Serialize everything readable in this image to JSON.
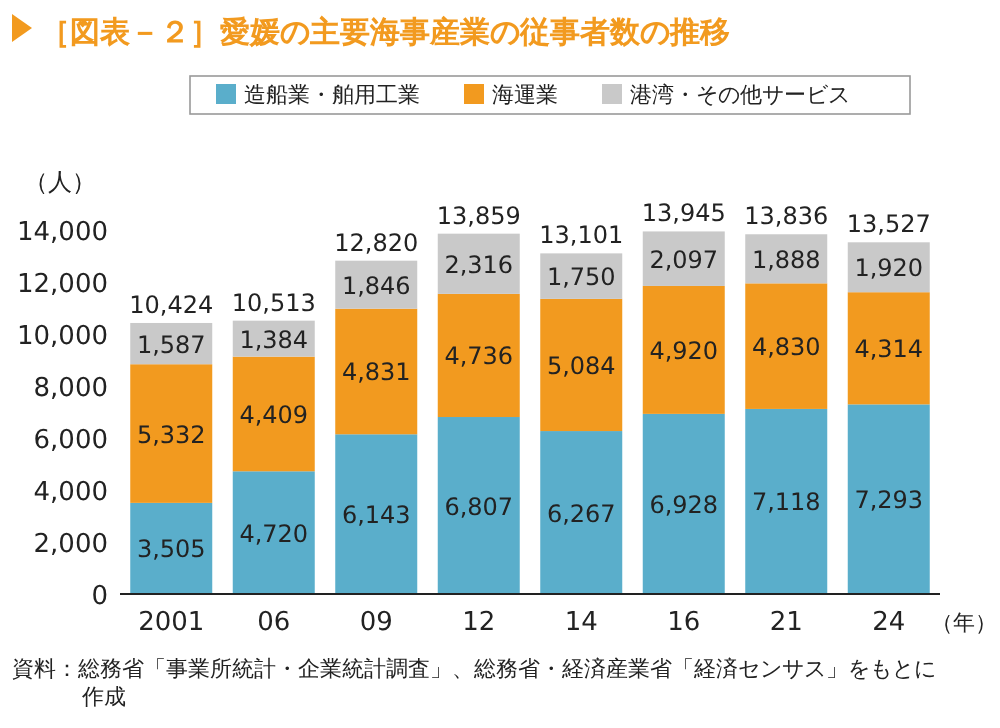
{
  "chart_data": {
    "type": "bar",
    "stacked": true,
    "title": "［図表－２］愛媛の主要海事産業の従事者数の推移",
    "ylabel": "（人）",
    "xlabel": "（年）",
    "categories": [
      "2001",
      "06",
      "09",
      "12",
      "14",
      "16",
      "21",
      "24"
    ],
    "series": [
      {
        "name": "造船業・舶用工業",
        "color": "#5aaecb",
        "values": [
          3505,
          4720,
          6143,
          6807,
          6267,
          6928,
          7118,
          7293
        ],
        "value_labels": [
          "3,505",
          "4,720",
          "6,143",
          "6,807",
          "6,267",
          "6,928",
          "7,118",
          "7,293"
        ]
      },
      {
        "name": "海運業",
        "color": "#f29a1f",
        "values": [
          5332,
          4409,
          4831,
          4736,
          5084,
          4920,
          4830,
          4314
        ],
        "value_labels": [
          "5,332",
          "4,409",
          "4,831",
          "4,736",
          "5,084",
          "4,920",
          "4,830",
          "4,314"
        ]
      },
      {
        "name": "港湾・その他サービス",
        "color": "#c9c9c9",
        "values": [
          1587,
          1384,
          1846,
          2316,
          1750,
          2097,
          1888,
          1920
        ],
        "value_labels": [
          "1,587",
          "1,384",
          "1,846",
          "2,316",
          "1,750",
          "2,097",
          "1,888",
          "1,920"
        ]
      }
    ],
    "totals": [
      "10,424",
      "10,513",
      "12,820",
      "13,859",
      "13,101",
      "13,945",
      "13,836",
      "13,527"
    ],
    "ylim": [
      0,
      14000
    ],
    "yticks": [
      0,
      {
        "value": 2000,
        "label": "2,000"
      },
      {
        "value": 4000,
        "label": "4,000"
      },
      {
        "value": 6000,
        "label": "6,000"
      },
      {
        "value": 8000,
        "label": "8,000"
      },
      {
        "value": 10000,
        "label": "10,000"
      },
      {
        "value": 12000,
        "label": "12,000"
      },
      {
        "value": 14000,
        "label": "14,000"
      }
    ],
    "legend": "top",
    "grid": false,
    "annotations": [
      "資料：総務省「事業所統計・企業統計調査」、総務省・経済産業省「経済センサス」をもとに作成"
    ]
  }
}
